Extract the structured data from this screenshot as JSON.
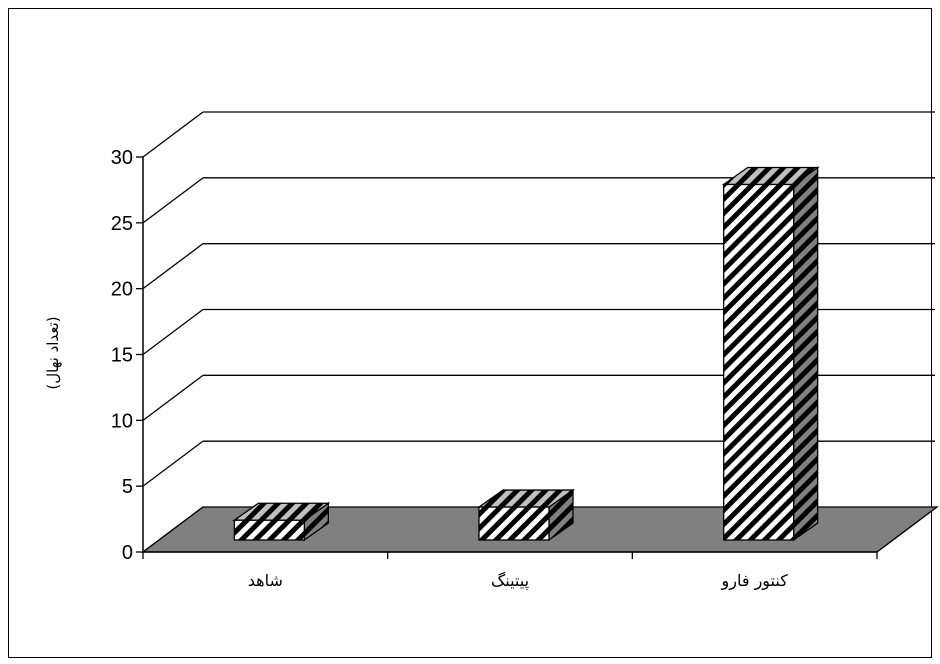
{
  "chart_data": {
    "type": "bar",
    "style": "3d-column",
    "categories": [
      "شاهد",
      "پیتینگ",
      "کنتور فارو"
    ],
    "values": [
      1.5,
      2.5,
      27
    ],
    "title": "",
    "xlabel": "",
    "ylabel": "(تعداد نهال)",
    "ylim": [
      0,
      30
    ],
    "yticks": [
      "0",
      "5",
      "10",
      "15",
      "20",
      "25",
      "30"
    ],
    "ytick_values": [
      0,
      5,
      10,
      15,
      20,
      25,
      30
    ],
    "grid": true,
    "legend": "none",
    "colors": {
      "floor": "#808080",
      "bar_front": "#ffffff",
      "bar_stripe": "#000000",
      "bar_top": "#b0b0b0",
      "bar_side": "#707070",
      "line": "#000000"
    }
  }
}
